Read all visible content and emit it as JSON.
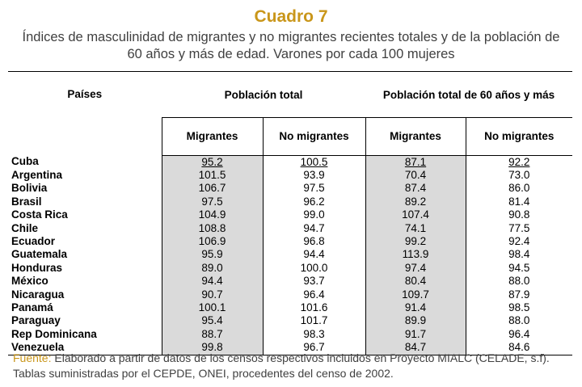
{
  "title": "Cuadro 7",
  "subtitle": "Índices de masculinidad de migrantes y no migrantes recientes totales y de la población de 60 años y más de edad. Varones por cada 100 mujeres",
  "headers": {
    "country": "Países",
    "group_total": "Población total",
    "group_60": "Población total de 60 años y más",
    "migrants": "Migrantes",
    "non_migrants": "No migrantes"
  },
  "rows": [
    {
      "country": "Cuba",
      "tm": "95.2",
      "tn": "100.5",
      "sm": "87.1",
      "sn": "92.2"
    },
    {
      "country": "Argentina",
      "tm": "101.5",
      "tn": "93.9",
      "sm": "70.4",
      "sn": "73.0"
    },
    {
      "country": "Bolivia",
      "tm": "106.7",
      "tn": "97.5",
      "sm": "87.4",
      "sn": "86.0"
    },
    {
      "country": "Brasil",
      "tm": "97.5",
      "tn": "96.2",
      "sm": "89.2",
      "sn": "81.4"
    },
    {
      "country": "Costa Rica",
      "tm": "104.9",
      "tn": "99.0",
      "sm": "107.4",
      "sn": "90.8"
    },
    {
      "country": "Chile",
      "tm": "108.8",
      "tn": "94.7",
      "sm": "74.1",
      "sn": "77.5"
    },
    {
      "country": "Ecuador",
      "tm": "106.9",
      "tn": "96.8",
      "sm": "99.2",
      "sn": "92.4"
    },
    {
      "country": "Guatemala",
      "tm": "95.9",
      "tn": "94.4",
      "sm": "113.9",
      "sn": "98.4"
    },
    {
      "country": "Honduras",
      "tm": "89.0",
      "tn": "100.0",
      "sm": "97.4",
      "sn": "94.5"
    },
    {
      "country": "México",
      "tm": "94.4",
      "tn": "93.7",
      "sm": "80.4",
      "sn": "88.0"
    },
    {
      "country": "Nicaragua",
      "tm": "90.7",
      "tn": "96.4",
      "sm": "109.7",
      "sn": "87.9"
    },
    {
      "country": "Panamá",
      "tm": "100.1",
      "tn": "101.6",
      "sm": "91.4",
      "sn": "98.5"
    },
    {
      "country": "Paraguay",
      "tm": "95.4",
      "tn": "101.7",
      "sm": "89.9",
      "sn": "88.0"
    },
    {
      "country": "Rep Dominicana",
      "tm": "88.7",
      "tn": "98.3",
      "sm": "91.7",
      "sn": "96.4"
    },
    {
      "country": "Venezuela",
      "tm": "99.8",
      "tn": "96.7",
      "sm": "84.7",
      "sn": "84.6"
    }
  ],
  "footer": {
    "source_label": "Fuente:",
    "text": " Elaborado a partir de datos de los censos respectivos incluidos en Proyecto MIALC (CELADE, s.f). Tablas suministradas por el CEPDE, ONEI, procedentes del censo de 2002."
  },
  "colors": {
    "title": "#C9961A",
    "shade": "#DADADA",
    "text_gray": "#404040"
  }
}
